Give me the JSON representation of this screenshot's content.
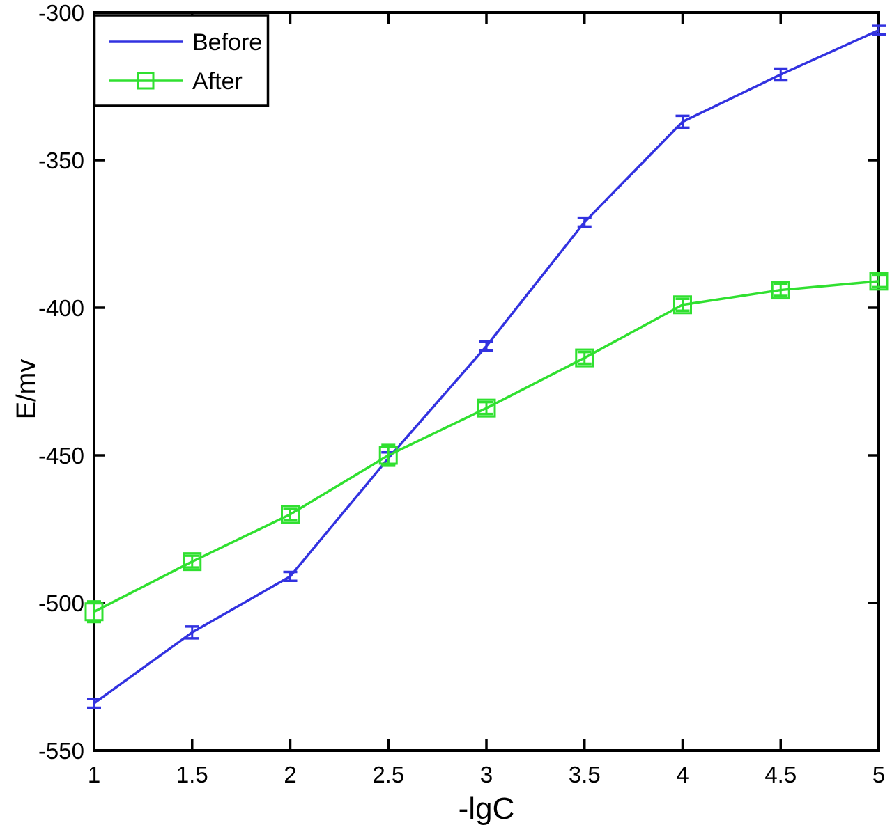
{
  "figure": {
    "background": "#ffffff",
    "axis_color": "#000000"
  },
  "chart_data": {
    "type": "line",
    "title": "",
    "xlabel": "-lgC",
    "ylabel": "E/mv",
    "xlim": [
      1,
      5
    ],
    "ylim": [
      -550,
      -300
    ],
    "grid": false,
    "legend_position": "top-left",
    "x_ticks": [
      1,
      1.5,
      2,
      2.5,
      3,
      3.5,
      4,
      4.5,
      5
    ],
    "x_tick_labels": [
      "1",
      "1.5",
      "2",
      "2.5",
      "3",
      "3.5",
      "4",
      "4.5",
      "5"
    ],
    "y_ticks": [
      -550,
      -500,
      -450,
      -400,
      -350,
      -300
    ],
    "y_tick_labels": [
      "-550",
      "-500",
      "-450",
      "-400",
      "-350",
      "-300"
    ],
    "x": [
      1,
      1.5,
      2,
      2.5,
      3,
      3.5,
      4,
      4.5,
      5
    ],
    "series": [
      {
        "name": "Before",
        "color": "#3232e0",
        "marker": "none",
        "values": [
          -534,
          -510,
          -491,
          -451,
          -413,
          -371,
          -337,
          -321,
          -306
        ],
        "error": [
          1.5,
          2,
          1.5,
          2,
          1.5,
          1.5,
          2,
          2,
          1.5
        ]
      },
      {
        "name": "After",
        "color": "#30e030",
        "marker": "square",
        "values": [
          -503,
          -486,
          -470,
          -450,
          -434,
          -417,
          -399,
          -394,
          -391
        ],
        "error": [
          3.5,
          2,
          2,
          3.5,
          2,
          2,
          2,
          2,
          2
        ]
      }
    ]
  }
}
